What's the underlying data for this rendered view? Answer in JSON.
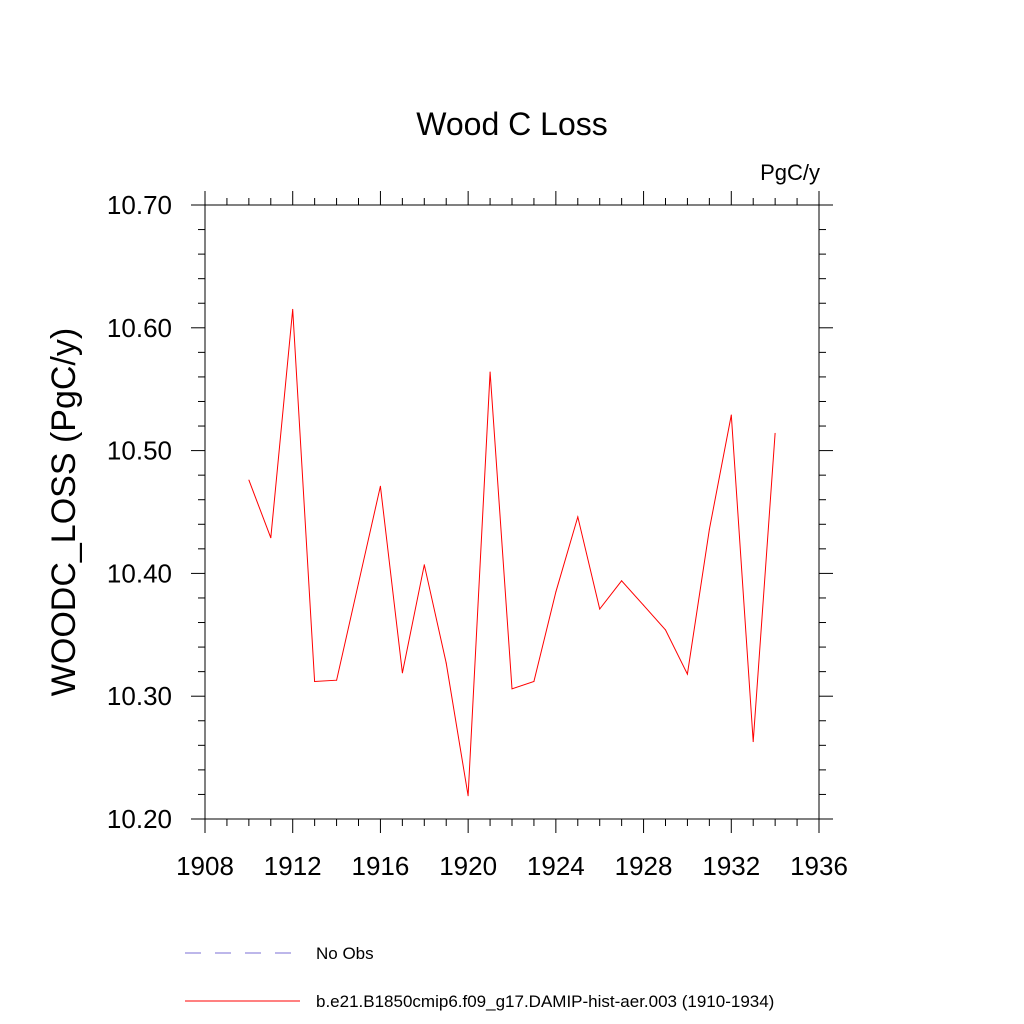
{
  "chart_data": {
    "type": "line",
    "title": "Wood C Loss",
    "units_label": "PgC/y",
    "ylabel": "WOODC_LOSS  (PgC/y)",
    "xlabel": "",
    "xlim": [
      1908,
      1936
    ],
    "ylim": [
      10.2,
      10.7
    ],
    "x_ticks": [
      "1908",
      "1912",
      "1916",
      "1920",
      "1924",
      "1928",
      "1932",
      "1936"
    ],
    "y_ticks": [
      "10.20",
      "10.30",
      "10.40",
      "10.50",
      "10.60",
      "10.70"
    ],
    "grid": false,
    "legend_position": "bottom",
    "series": [
      {
        "name": "b.e21.B1850cmip6.f09_g17.DAMIP-hist-aer.003 (1910-1934)",
        "color": "#ff0000",
        "style": "solid",
        "x": [
          1910,
          1911,
          1912,
          1913,
          1914,
          1915,
          1916,
          1917,
          1918,
          1919,
          1920,
          1921,
          1922,
          1923,
          1924,
          1925,
          1926,
          1927,
          1928,
          1929,
          1930,
          1931,
          1932,
          1933,
          1934
        ],
        "values": [
          10.476,
          10.429,
          10.615,
          10.312,
          10.313,
          10.392,
          10.471,
          10.319,
          10.407,
          10.327,
          10.219,
          10.564,
          10.306,
          10.312,
          10.385,
          10.446,
          10.371,
          10.394,
          10.374,
          10.354,
          10.318,
          10.436,
          10.529,
          10.263,
          10.514
        ]
      }
    ],
    "legend": [
      {
        "label": "No Obs",
        "color": "#7b6fd6",
        "style": "dashed"
      },
      {
        "label": "b.e21.B1850cmip6.f09_g17.DAMIP-hist-aer.003 (1910-1934)",
        "color": "#ff0000",
        "style": "solid"
      }
    ]
  }
}
